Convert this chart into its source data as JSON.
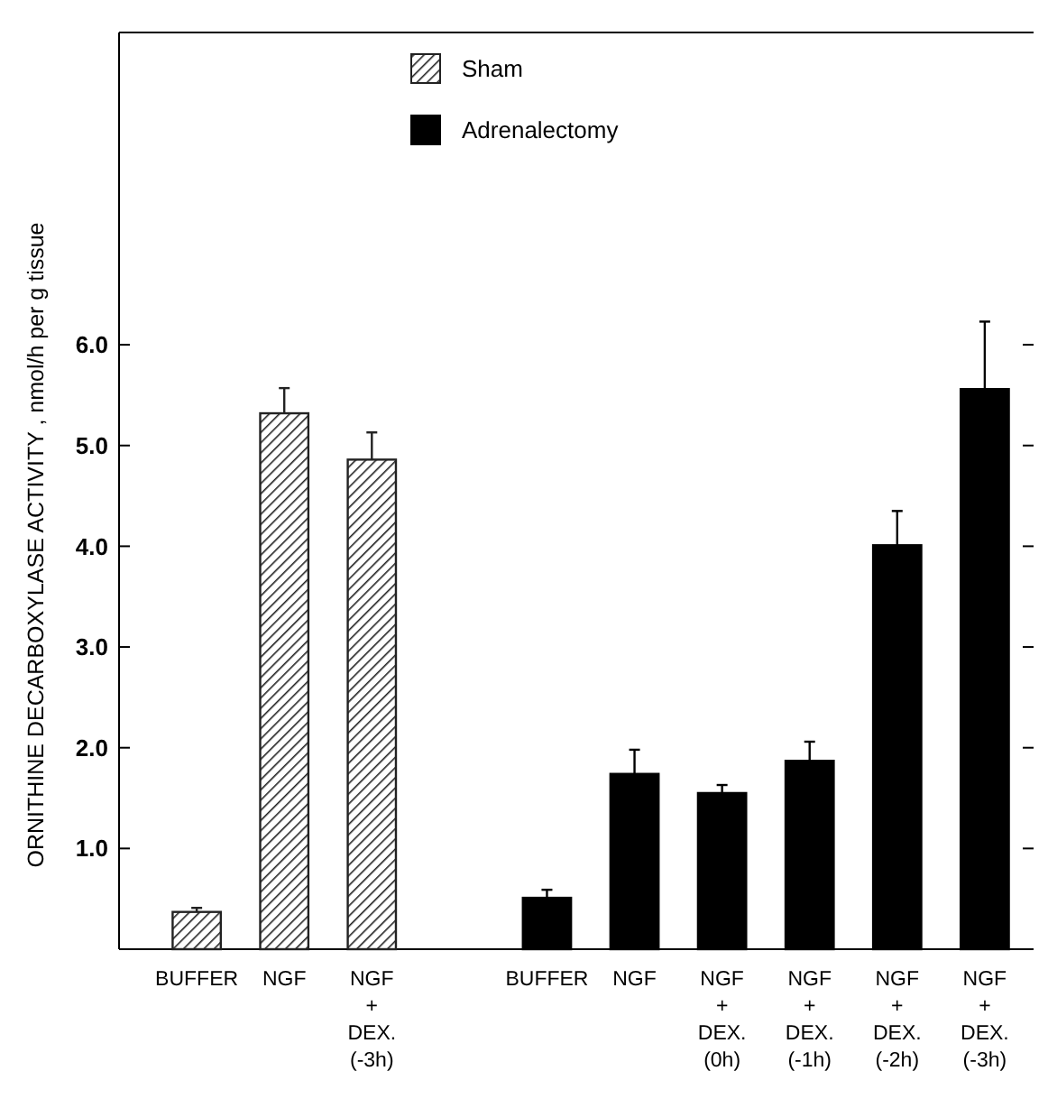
{
  "chart_data": {
    "type": "bar",
    "ylabel": "ORNITHINE  DECARBOXYLASE  ACTIVITY ,  nmol/h  per  g  tissue",
    "categories": [
      "BUFFER",
      "NGF",
      "NGF\n+\nDEX.\n(-3h)",
      null,
      "BUFFER",
      "NGF",
      "NGF\n+\nDEX.\n(0h)",
      "NGF\n+\nDEX.\n(-1h)",
      "NGF\n+\nDEX.\n(-2h)",
      "NGF\n+\nDEX.\n(-3h)"
    ],
    "series": [
      {
        "name": "Sham",
        "color": "#222222",
        "values": [
          0.37,
          5.32,
          4.86,
          null,
          null,
          null,
          null,
          null,
          null,
          null
        ],
        "errors": [
          0.04,
          0.25,
          0.27,
          null,
          null,
          null,
          null,
          null,
          null,
          null
        ]
      },
      {
        "name": "Adrenalectomy",
        "color": "#000000",
        "values": [
          null,
          null,
          null,
          null,
          0.51,
          1.74,
          1.55,
          1.87,
          4.01,
          5.56
        ],
        "errors": [
          null,
          null,
          null,
          null,
          0.08,
          0.24,
          0.08,
          0.19,
          0.34,
          0.67
        ]
      }
    ],
    "ylim": [
      0,
      9.1
    ],
    "yticks": [
      {
        "value": 1,
        "label": "1.0"
      },
      {
        "value": 2,
        "label": "2.0"
      },
      {
        "value": 3,
        "label": "3.0"
      },
      {
        "value": 4,
        "label": "4.0"
      },
      {
        "value": 5,
        "label": "5.0"
      },
      {
        "value": 6,
        "label": "6.0"
      }
    ],
    "legend": "top",
    "grid": false
  }
}
